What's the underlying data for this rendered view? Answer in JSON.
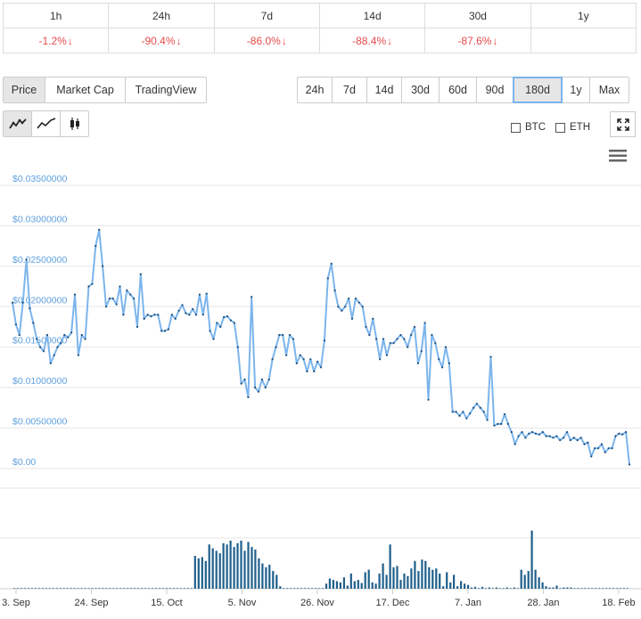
{
  "performance": {
    "periods": [
      {
        "label": "1h",
        "change": "-1.2%"
      },
      {
        "label": "24h",
        "change": "-90.4%"
      },
      {
        "label": "7d",
        "change": "-86.0%"
      },
      {
        "label": "14d",
        "change": "-88.4%"
      },
      {
        "label": "30d",
        "change": "-87.6%"
      },
      {
        "label": "1y",
        "change": ""
      }
    ],
    "negative_color": "#e64b4b",
    "arrow": "↓"
  },
  "view_tabs": [
    {
      "label": "Price",
      "active": true
    },
    {
      "label": "Market Cap",
      "active": false
    },
    {
      "label": "TradingView",
      "active": false
    }
  ],
  "range_buttons": [
    {
      "label": "24h"
    },
    {
      "label": "7d"
    },
    {
      "label": "14d"
    },
    {
      "label": "30d"
    },
    {
      "label": "60d"
    },
    {
      "label": "90d"
    },
    {
      "label": "180d",
      "selected": true
    },
    {
      "label": "1y"
    },
    {
      "label": "Max"
    }
  ],
  "chart_type_icons": [
    "line-chart-icon",
    "smooth-line-icon",
    "candlestick-icon"
  ],
  "compare": {
    "btc": "BTC",
    "eth": "ETH"
  },
  "colors": {
    "line": "#7cb5ec",
    "point": "#1f4e79",
    "volume": "#1f5f8b",
    "axis_label": "#5ea0e0",
    "selected_border": "#7cb5ec"
  },
  "chart_data": [
    {
      "type": "line",
      "ylim": [
        0,
        0.035
      ],
      "y_ticks": [
        {
          "v": 0.035,
          "label": "$0.03500000"
        },
        {
          "v": 0.03,
          "label": "$0.03000000"
        },
        {
          "v": 0.025,
          "label": "$0.02500000"
        },
        {
          "v": 0.02,
          "label": "$0.02000000"
        },
        {
          "v": 0.015,
          "label": "$0.01500000"
        },
        {
          "v": 0.01,
          "label": "$0.01000000"
        },
        {
          "v": 0.005,
          "label": "$0.00500000"
        },
        {
          "v": 0,
          "label": "$0.00"
        }
      ],
      "x_start": "2018-09-02",
      "x_end": "2019-02-21",
      "x_ticks": [
        {
          "d": "2018-09-03",
          "label": "3. Sep"
        },
        {
          "d": "2018-09-24",
          "label": "24. Sep"
        },
        {
          "d": "2018-10-15",
          "label": "15. Oct"
        },
        {
          "d": "2018-11-05",
          "label": "5. Nov"
        },
        {
          "d": "2018-11-26",
          "label": "26. Nov"
        },
        {
          "d": "2018-12-17",
          "label": "17. Dec"
        },
        {
          "d": "2019-01-07",
          "label": "7. Jan"
        },
        {
          "d": "2019-01-28",
          "label": "28. Jan"
        },
        {
          "d": "2019-02-18",
          "label": "18. Feb"
        }
      ],
      "series": [
        {
          "values": [
            0.0205,
            0.0178,
            0.0165,
            0.0205,
            0.0258,
            0.0198,
            0.018,
            0.016,
            0.015,
            0.0145,
            0.0165,
            0.013,
            0.014,
            0.015,
            0.0155,
            0.0165,
            0.0162,
            0.0168,
            0.0215,
            0.014,
            0.0165,
            0.016,
            0.0225,
            0.0228,
            0.0275,
            0.0295,
            0.025,
            0.02,
            0.021,
            0.021,
            0.0203,
            0.0225,
            0.019,
            0.022,
            0.0215,
            0.021,
            0.0175,
            0.024,
            0.0185,
            0.019,
            0.0188,
            0.019,
            0.019,
            0.017,
            0.017,
            0.0172,
            0.019,
            0.0185,
            0.0195,
            0.0202,
            0.0192,
            0.019,
            0.0197,
            0.019,
            0.0215,
            0.019,
            0.0216,
            0.017,
            0.016,
            0.018,
            0.0175,
            0.0187,
            0.0188,
            0.0183,
            0.018,
            0.015,
            0.0105,
            0.011,
            0.0088,
            0.0212,
            0.01,
            0.0095,
            0.011,
            0.01,
            0.011,
            0.0135,
            0.015,
            0.0165,
            0.0165,
            0.014,
            0.0165,
            0.016,
            0.013,
            0.014,
            0.0135,
            0.012,
            0.0135,
            0.012,
            0.0132,
            0.0125,
            0.0158,
            0.0235,
            0.0253,
            0.022,
            0.02,
            0.0195,
            0.02,
            0.021,
            0.0185,
            0.021,
            0.0205,
            0.02,
            0.0175,
            0.0165,
            0.0185,
            0.016,
            0.0135,
            0.016,
            0.014,
            0.0155,
            0.0155,
            0.016,
            0.0165,
            0.016,
            0.015,
            0.0165,
            0.0175,
            0.013,
            0.0145,
            0.018,
            0.0085,
            0.0165,
            0.0155,
            0.0135,
            0.0125,
            0.015,
            0.013,
            0.007,
            0.007,
            0.0065,
            0.007,
            0.0062,
            0.0068,
            0.0075,
            0.008,
            0.0075,
            0.007,
            0.006,
            0.0138,
            0.0053,
            0.0055,
            0.0055,
            0.0067,
            0.0055,
            0.0045,
            0.003,
            0.004,
            0.0045,
            0.0038,
            0.0043,
            0.0045,
            0.0043,
            0.0042,
            0.0045,
            0.004,
            0.004,
            0.0038,
            0.004,
            0.0035,
            0.0038,
            0.0045,
            0.0035,
            0.0038,
            0.0035,
            0.0038,
            0.003,
            0.0032,
            0.0015,
            0.0025,
            0.0025,
            0.003,
            0.002,
            0.0025,
            0.0025,
            0.004,
            0.0043,
            0.0042,
            0.0045,
            0.0005
          ]
        }
      ]
    },
    {
      "type": "bar",
      "name": "volume",
      "ylim": [
        0,
        1
      ],
      "values": [
        0.01,
        0.01,
        0.01,
        0.01,
        0.01,
        0.01,
        0.01,
        0.01,
        0.01,
        0.01,
        0.01,
        0.01,
        0.01,
        0.01,
        0.01,
        0.01,
        0.01,
        0.01,
        0.01,
        0.01,
        0.01,
        0.01,
        0.01,
        0.01,
        0.01,
        0.01,
        0.01,
        0.01,
        0.01,
        0.01,
        0.01,
        0.01,
        0.01,
        0.01,
        0.01,
        0.01,
        0.01,
        0.01,
        0.01,
        0.01,
        0.01,
        0.01,
        0.01,
        0.01,
        0.01,
        0.01,
        0.01,
        0.01,
        0.01,
        0.01,
        0.01,
        0.52,
        0.48,
        0.5,
        0.44,
        0.7,
        0.64,
        0.6,
        0.56,
        0.72,
        0.7,
        0.76,
        0.66,
        0.72,
        0.76,
        0.6,
        0.74,
        0.66,
        0.62,
        0.48,
        0.4,
        0.34,
        0.38,
        0.28,
        0.22,
        0.04,
        0.01,
        0.01,
        0.01,
        0.01,
        0.01,
        0.01,
        0.01,
        0.01,
        0.01,
        0.01,
        0.01,
        0.01,
        0.08,
        0.16,
        0.14,
        0.12,
        0.1,
        0.18,
        0.05,
        0.24,
        0.12,
        0.14,
        0.09,
        0.26,
        0.3,
        0.1,
        0.08,
        0.24,
        0.4,
        0.22,
        0.7,
        0.34,
        0.36,
        0.14,
        0.24,
        0.2,
        0.32,
        0.44,
        0.28,
        0.46,
        0.44,
        0.34,
        0.3,
        0.32,
        0.24,
        0.04,
        0.26,
        0.1,
        0.22,
        0.04,
        0.12,
        0.08,
        0.06,
        0.02,
        0.03,
        0.01,
        0.03,
        0.01,
        0.02,
        0.01,
        0.02,
        0.01,
        0.01,
        0.02,
        0.01,
        0.02,
        0.01,
        0.3,
        0.22,
        0.28,
        0.92,
        0.3,
        0.18,
        0.1,
        0.04,
        0.02,
        0.02,
        0.05,
        0.01,
        0.02,
        0.02,
        0.02,
        0.01,
        0.01,
        0.01,
        0.01,
        0.01,
        0.01,
        0.01,
        0.01,
        0.01,
        0.01,
        0.01,
        0.01,
        0.01,
        0.01,
        0.01,
        0.01
      ]
    }
  ]
}
